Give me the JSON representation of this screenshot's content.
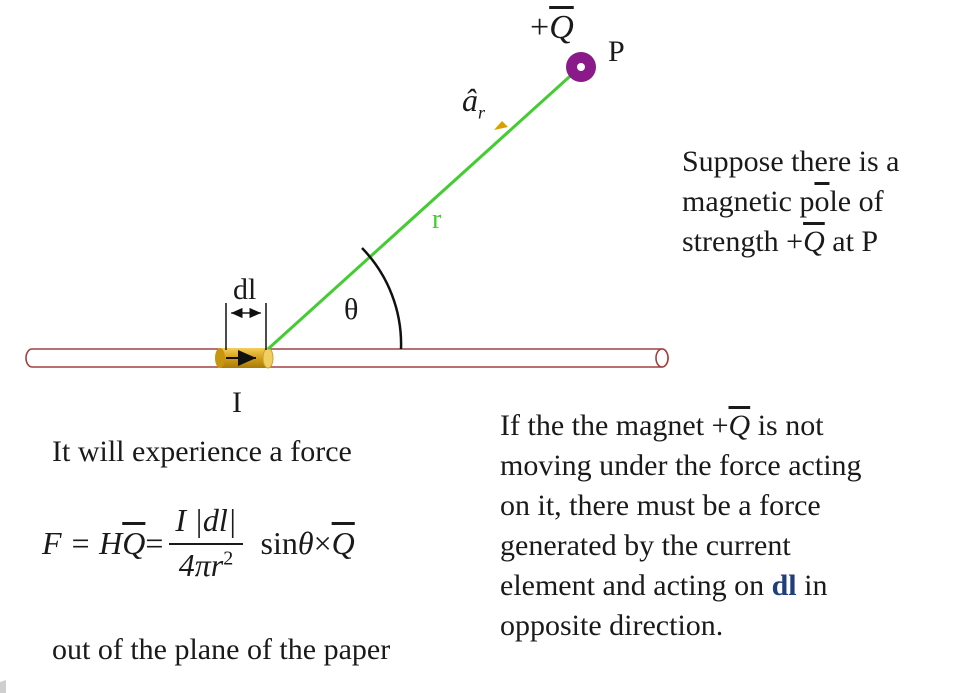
{
  "diagram": {
    "charge_label_sign": "+",
    "charge_label_symbol": "Q",
    "point_label": "P",
    "unit_vector_label": "â",
    "unit_vector_subscript": "r",
    "distance_label": "r",
    "angle_label": "θ",
    "element_label": "dl",
    "current_label": "I",
    "colors": {
      "line": "#44cc33",
      "pole": "#8a1a8a",
      "element": "#d4a017",
      "wire_outline": "#a04040",
      "arrow": "#d9a000"
    }
  },
  "text": {
    "suppose_line1": "Suppose there is a",
    "suppose_line2_pre": "magnetic p",
    "suppose_line2_o": "o",
    "suppose_line2_post": "le of",
    "suppose_line3_pre": "strength  +",
    "suppose_line3_q": "Q",
    "suppose_line3_post": "  at P",
    "experience": "It will experience a force",
    "out_of_plane": "out of the plane of the paper",
    "right_line1_pre": "If the the magnet  +",
    "right_line1_q": "Q",
    "right_line1_post": " is not",
    "right_line2": "moving under the force acting",
    "right_line3": "on it, there must be a force",
    "right_line4": "generated by the current",
    "right_line5_pre": "element and acting on ",
    "right_line5_dl": "dl",
    "right_line5_post": " in",
    "right_line6": "opposite direction."
  },
  "formula": {
    "lhs": "F = H",
    "q": "Q",
    "eq": " = ",
    "num_i": "I",
    "num_abs": "|dl|",
    "den": "4πr",
    "den_exp": "2",
    "sin": "sin",
    "theta": "θ",
    "times": " × ",
    "q2": "Q"
  }
}
